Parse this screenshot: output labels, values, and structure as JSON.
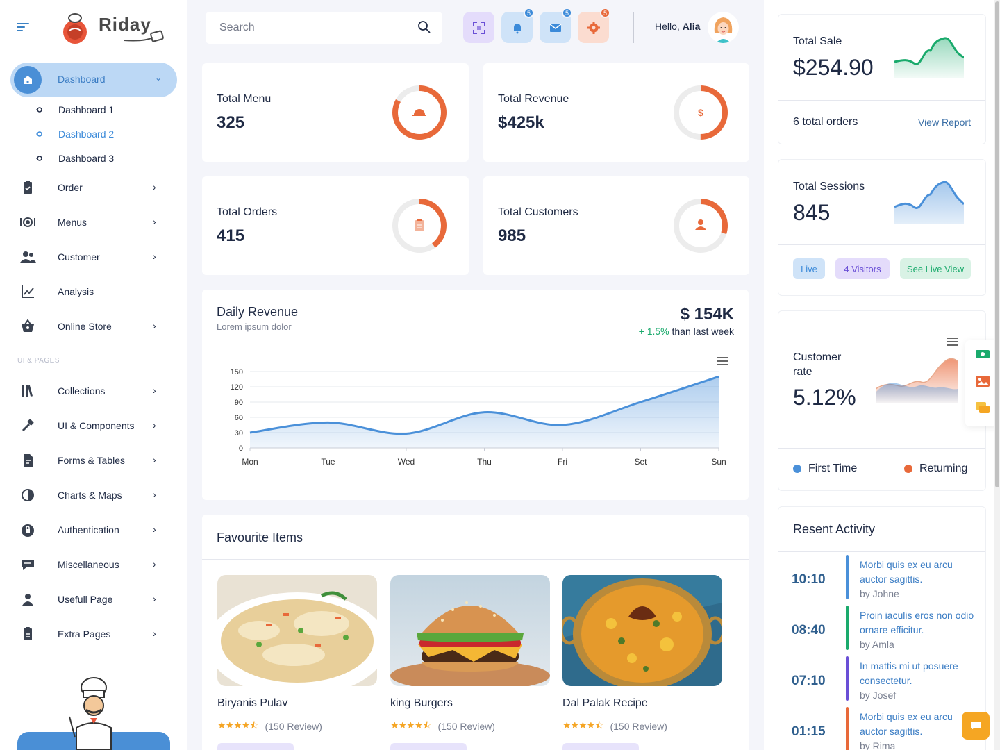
{
  "brand": {
    "name": "Riday"
  },
  "sidebar": {
    "active": {
      "label": "Dashboard"
    },
    "subitems": [
      {
        "label": "Dashboard 1"
      },
      {
        "label": "Dashboard 2"
      },
      {
        "label": "Dashboard 3"
      }
    ],
    "items": [
      {
        "label": "Order",
        "icon": "clipboard-check-icon",
        "chevron": true
      },
      {
        "label": "Menus",
        "icon": "plate-cutlery-icon",
        "chevron": true
      },
      {
        "label": "Customer",
        "icon": "users-icon",
        "chevron": true
      },
      {
        "label": "Analysis",
        "icon": "line-chart-icon",
        "chevron": false
      },
      {
        "label": "Online Store",
        "icon": "basket-icon",
        "chevron": true
      }
    ],
    "section_label": "UI & PAGES",
    "items2": [
      {
        "label": "Collections",
        "icon": "books-icon"
      },
      {
        "label": "UI & Components",
        "icon": "tools-icon"
      },
      {
        "label": "Forms & Tables",
        "icon": "form-icon"
      },
      {
        "label": "Charts & Maps",
        "icon": "pie-icon"
      },
      {
        "label": "Authentication",
        "icon": "lock-icon"
      },
      {
        "label": "Miscellaneous",
        "icon": "monitor-icon"
      },
      {
        "label": "Usefull Page",
        "icon": "user-icon"
      },
      {
        "label": "Extra Pages",
        "icon": "document-icon"
      }
    ]
  },
  "topbar": {
    "search_placeholder": "Search",
    "badges": {
      "notifications": "5",
      "messages": "5",
      "settings": "5"
    },
    "greeting": "Hello,",
    "user_name": "Alia"
  },
  "stats": [
    {
      "title": "Total Menu",
      "value": "325",
      "progress": 0.83,
      "icon": "dish-icon"
    },
    {
      "title": "Total Revenue",
      "value": "$425k",
      "progress": 0.5,
      "icon": "dollar-icon",
      "symbol": "$"
    },
    {
      "title": "Total Orders",
      "value": "415",
      "progress": 0.4,
      "icon": "clipboard-icon"
    },
    {
      "title": "Total Customers",
      "value": "985",
      "progress": 0.3,
      "icon": "user-icon"
    }
  ],
  "revenue": {
    "title": "Daily Revenue",
    "subtitle": "Lorem ipsum dolor",
    "amount": "$ 154K",
    "change": "+ 1.5%",
    "change_text": "than last week"
  },
  "chart_data": {
    "type": "area",
    "categories": [
      "Mon",
      "Tue",
      "Wed",
      "Thu",
      "Fri",
      "Set",
      "Sun"
    ],
    "series": [
      {
        "values": [
          30,
          50,
          28,
          70,
          45,
          90,
          140
        ]
      }
    ],
    "yticks": [
      0,
      30,
      60,
      90,
      120,
      150
    ],
    "ylim": [
      0,
      150
    ],
    "grid": true,
    "color": "#4a90d9"
  },
  "favourites": {
    "title": "Favourite Items",
    "items": [
      {
        "name": "Biryanis Pulav",
        "rating": 4.5,
        "reviews": "(150 Review)"
      },
      {
        "name": "king Burgers",
        "rating": 4.5,
        "reviews": "(150 Review)"
      },
      {
        "name": "Dal Palak Recipe",
        "rating": 4.5,
        "reviews": "(150 Review)"
      }
    ]
  },
  "right": {
    "sale": {
      "title": "Total Sale",
      "value": "$254.90",
      "orders": "6 total orders",
      "link": "View Report"
    },
    "sessions": {
      "title": "Total Sessions",
      "value": "845",
      "pills": [
        "Live",
        "4 Visitors",
        "See Live View"
      ]
    },
    "customer_rate": {
      "title_line1": "Customer",
      "title_line2": "rate",
      "value": "5.12%",
      "legend": [
        "First Time",
        "Returning"
      ]
    },
    "activity": {
      "title": "Resent Activity",
      "items": [
        {
          "time": "10:10",
          "text": "Morbi quis ex eu arcu auctor sagittis.",
          "by": "by Johne",
          "color": "#4a90d9"
        },
        {
          "time": "08:40",
          "text": "Proin iaculis eros non odio ornare efficitur.",
          "by": "by Amla",
          "color": "#1aaa6c"
        },
        {
          "time": "07:10",
          "text": "In mattis mi ut posuere consectetur.",
          "by": "by Josef",
          "color": "#6a4fd6"
        },
        {
          "time": "01:15",
          "text": "Morbi quis ex eu arcu auctor sagittis.",
          "by": "by Rima",
          "color": "#e8693a"
        }
      ]
    }
  },
  "colors": {
    "accent": "#4a8fd6",
    "orange": "#e8693a",
    "green": "#1aaa6c"
  }
}
